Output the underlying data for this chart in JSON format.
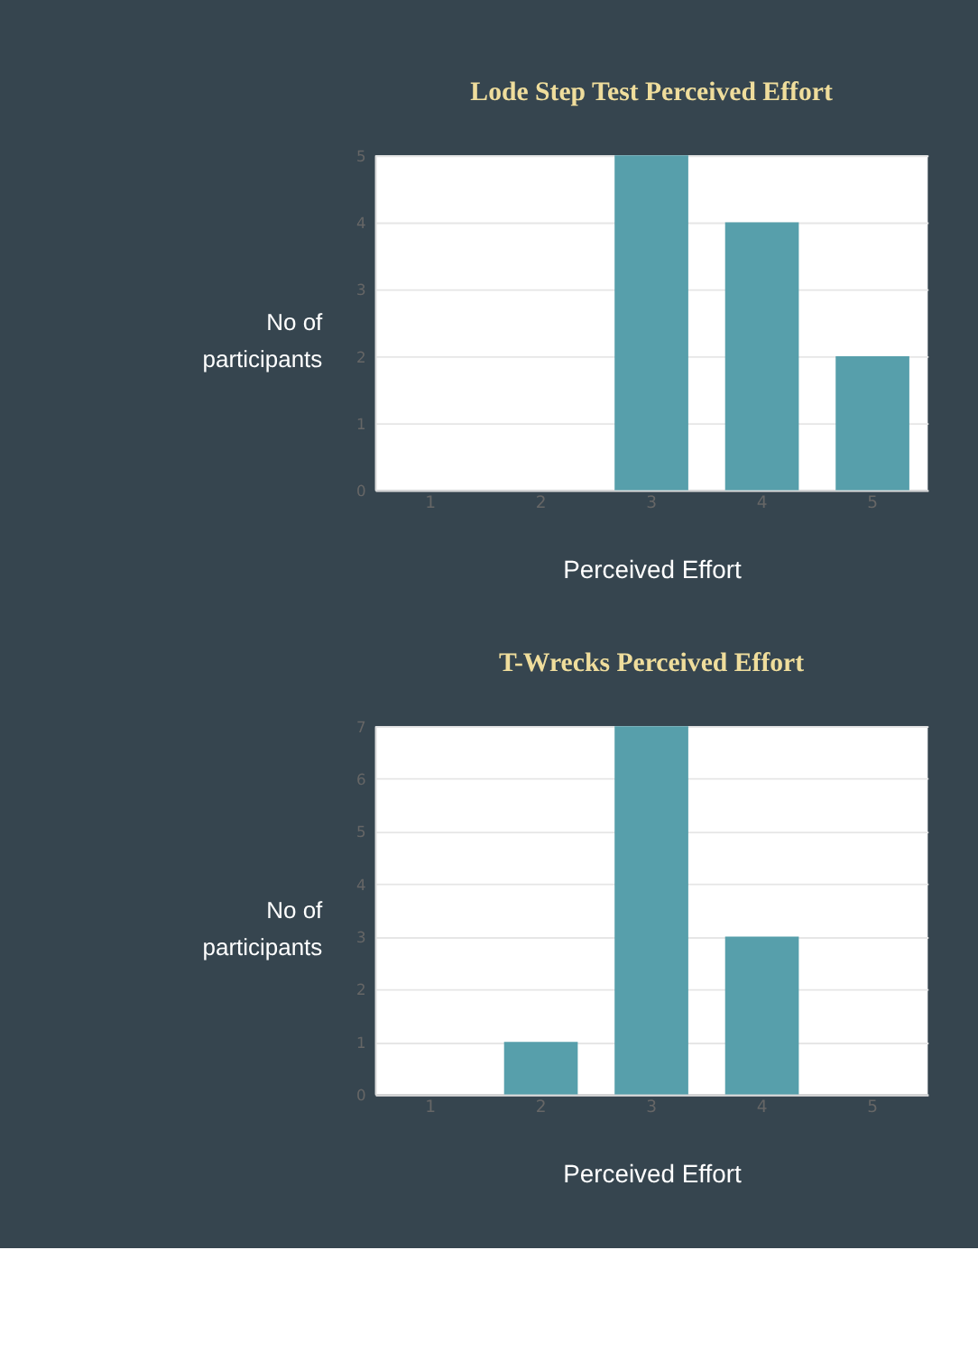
{
  "chart_data": [
    {
      "type": "bar",
      "title": "Lode Step Test Perceived Effort",
      "xlabel": "Perceived Effort",
      "ylabel": "No of participants",
      "categories": [
        "1",
        "2",
        "3",
        "4",
        "5"
      ],
      "values": [
        0,
        0,
        5,
        4,
        2
      ],
      "color": "#579fab",
      "ylim": [
        0,
        5
      ],
      "yticks": [
        0,
        1,
        2,
        3,
        4,
        5
      ],
      "grid": "y"
    },
    {
      "type": "bar",
      "title": "T-Wrecks Perceived Effort",
      "xlabel": "Perceived Effort",
      "ylabel": "No of participants",
      "categories": [
        "1",
        "2",
        "3",
        "4",
        "5"
      ],
      "values": [
        0,
        1,
        7,
        3,
        0
      ],
      "color": "#579fab",
      "ylim": [
        0,
        7
      ],
      "yticks": [
        0,
        1,
        2,
        3,
        4,
        5,
        6,
        7
      ],
      "grid": "y"
    }
  ]
}
